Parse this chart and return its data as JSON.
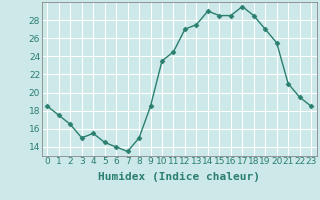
{
  "xlabel": "Humidex (Indice chaleur)",
  "x": [
    0,
    1,
    2,
    3,
    4,
    5,
    6,
    7,
    8,
    9,
    10,
    11,
    12,
    13,
    14,
    15,
    16,
    17,
    18,
    19,
    20,
    21,
    22,
    23
  ],
  "y": [
    18.5,
    17.5,
    16.5,
    15.0,
    15.5,
    14.5,
    14.0,
    13.5,
    15.0,
    18.5,
    23.5,
    24.5,
    27.0,
    27.5,
    29.0,
    28.5,
    28.5,
    29.5,
    28.5,
    27.0,
    25.5,
    21.0,
    19.5,
    18.5
  ],
  "line_color": "#2a7f6e",
  "marker": "D",
  "marker_size": 2.5,
  "background_color": "#cce8e8",
  "grid_color": "#ffffff",
  "ylim": [
    13.0,
    30.0
  ],
  "xlim": [
    -0.5,
    23.5
  ],
  "yticks": [
    14,
    16,
    18,
    20,
    22,
    24,
    26,
    28
  ],
  "xticks": [
    0,
    1,
    2,
    3,
    4,
    5,
    6,
    7,
    8,
    9,
    10,
    11,
    12,
    13,
    14,
    15,
    16,
    17,
    18,
    19,
    20,
    21,
    22,
    23
  ],
  "tick_fontsize": 6.5,
  "xlabel_fontsize": 8,
  "line_width": 1.0
}
